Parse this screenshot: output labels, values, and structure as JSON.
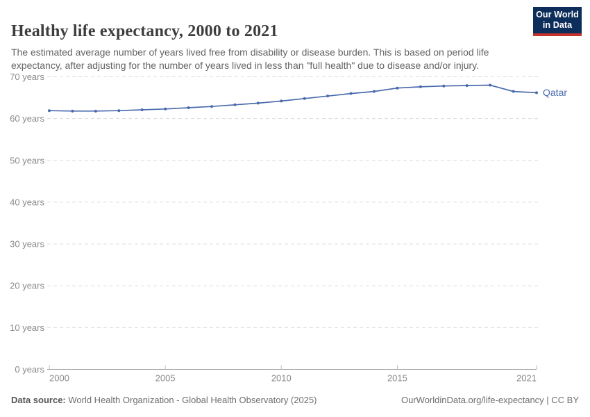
{
  "header": {
    "title": "Healthy life expectancy, 2000 to 2021",
    "subtitle": "The estimated average number of years lived free from disability or disease burden. This is based on period life expectancy, after adjusting for the number of years lived in less than \"full health\" due to disease and/or injury.",
    "logo": {
      "line1": "Our World",
      "line2": "in Data",
      "bg_color": "#0d2e5b",
      "accent_color": "#c4342d"
    }
  },
  "chart_data": {
    "type": "line",
    "title": "Healthy life expectancy, 2000 to 2021",
    "x": [
      2000,
      2001,
      2002,
      2003,
      2004,
      2005,
      2006,
      2007,
      2008,
      2009,
      2010,
      2011,
      2012,
      2013,
      2014,
      2015,
      2016,
      2017,
      2018,
      2019,
      2020,
      2021
    ],
    "series": [
      {
        "name": "Qatar",
        "color": "#4a6aad",
        "values": [
          61.9,
          61.8,
          61.8,
          61.9,
          62.1,
          62.3,
          62.6,
          62.9,
          63.3,
          63.7,
          64.2,
          64.8,
          65.4,
          66.0,
          66.5,
          67.3,
          67.6,
          67.8,
          67.9,
          68.0,
          66.5,
          66.2
        ]
      }
    ],
    "xlabel": "",
    "ylabel": "",
    "ylim": [
      0,
      70
    ],
    "yticks": [
      0,
      10,
      20,
      30,
      40,
      50,
      60,
      70
    ],
    "ytick_suffix": " years",
    "xticks": [
      2000,
      2005,
      2010,
      2015,
      2021
    ],
    "grid": "horizontal-dashed",
    "legend_position": "end-of-line-label",
    "end_label": "Qatar",
    "axis_color": "#a5a5a5",
    "grid_color": "#dcdcdc",
    "tick_label_color": "#8a8a8a"
  },
  "footer": {
    "datasource_label": "Data source:",
    "datasource_value": " World Health Organization - Global Health Observatory (2025)",
    "attribution": "OurWorldinData.org/life-expectancy | CC BY"
  }
}
